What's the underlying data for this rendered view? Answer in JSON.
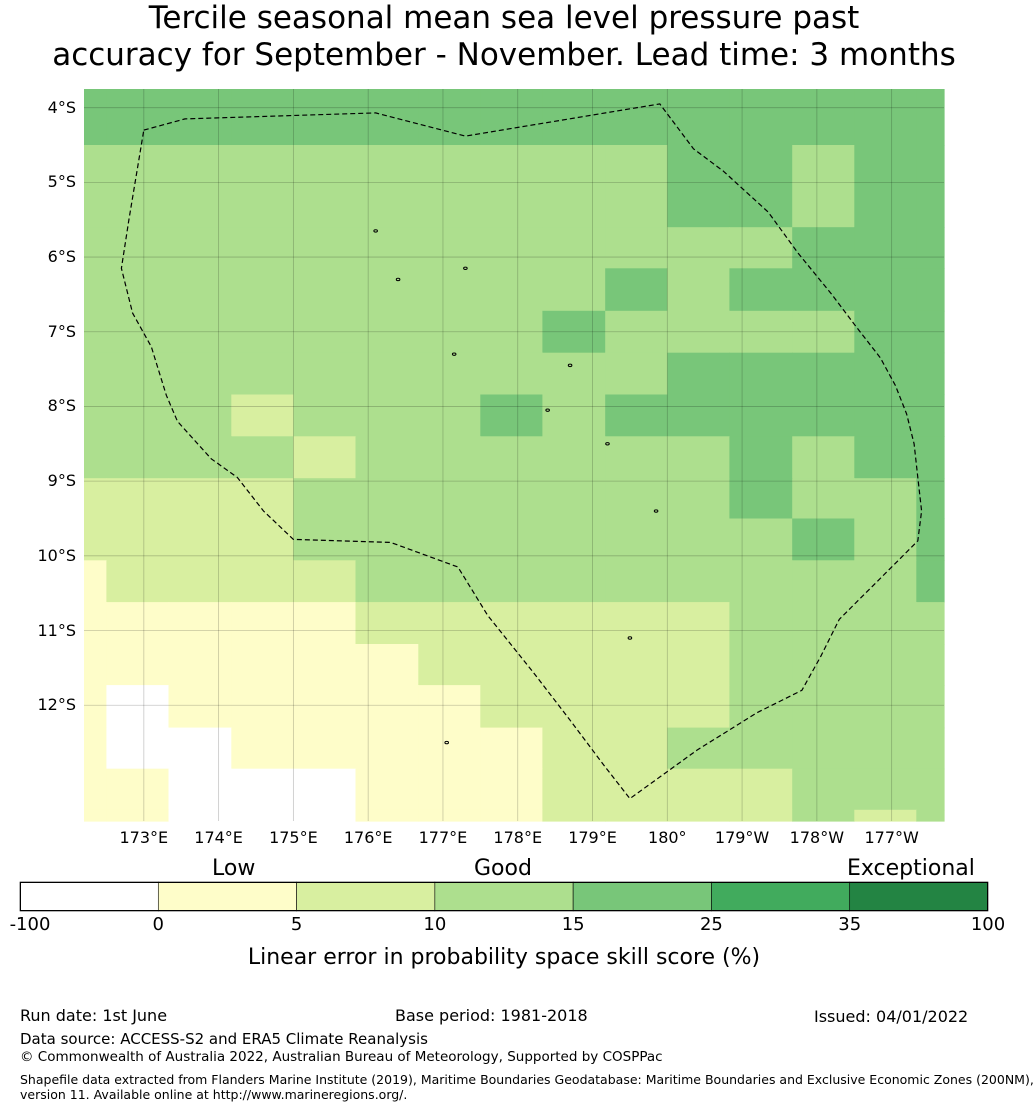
{
  "title": {
    "line1": "Tercile seasonal mean sea level pressure past",
    "line2": "accuracy for September - November. Lead time: 3 months"
  },
  "map": {
    "lat_labels": [
      "4°S",
      "5°S",
      "6°S",
      "7°S",
      "8°S",
      "9°S",
      "10°S",
      "11°S",
      "12°S"
    ],
    "lon_labels": [
      "173°E",
      "174°E",
      "175°E",
      "176°E",
      "177°E",
      "178°E",
      "179°E",
      "180°",
      "179°W",
      "178°W",
      "177°W"
    ],
    "lon_range": [
      172.2,
      183.7
    ],
    "lat_range": [
      -3.75,
      -13.55
    ],
    "grid": {
      "comment_cols": "cell columns span the longitude range left to right",
      "col_edges_lon": [
        172.2,
        172.5,
        173.33,
        174.17,
        175.0,
        175.83,
        176.67,
        177.5,
        178.33,
        179.17,
        180.0,
        180.83,
        181.67,
        182.5,
        183.33,
        183.7
      ],
      "row_edges_lat": [
        -3.75,
        -4.5,
        -5.6,
        -6.15,
        -6.72,
        -7.28,
        -7.84,
        -8.4,
        -8.96,
        -9.5,
        -10.06,
        -10.62,
        -11.18,
        -11.73,
        -12.3,
        -12.85,
        -13.4,
        -13.55
      ],
      "categories": [
        [
          4,
          4,
          4,
          4,
          4,
          4,
          4,
          4,
          4,
          4,
          4,
          4,
          4,
          4,
          4
        ],
        [
          3,
          3,
          3,
          3,
          3,
          3,
          3,
          3,
          3,
          3,
          4,
          4,
          3,
          4,
          4
        ],
        [
          3,
          3,
          3,
          3,
          3,
          3,
          3,
          3,
          3,
          3,
          3,
          3,
          4,
          4,
          4
        ],
        [
          3,
          3,
          3,
          3,
          3,
          3,
          3,
          3,
          3,
          4,
          3,
          4,
          4,
          4,
          4
        ],
        [
          3,
          3,
          3,
          3,
          3,
          3,
          3,
          3,
          4,
          3,
          3,
          3,
          3,
          4,
          4
        ],
        [
          3,
          3,
          3,
          3,
          3,
          3,
          3,
          3,
          3,
          3,
          4,
          4,
          4,
          4,
          4
        ],
        [
          3,
          3,
          3,
          2,
          3,
          3,
          3,
          4,
          3,
          4,
          4,
          4,
          4,
          4,
          4
        ],
        [
          3,
          3,
          3,
          3,
          2,
          3,
          3,
          3,
          3,
          3,
          3,
          4,
          3,
          4,
          4
        ],
        [
          2,
          2,
          2,
          2,
          3,
          3,
          3,
          3,
          3,
          3,
          3,
          4,
          3,
          3,
          4
        ],
        [
          2,
          2,
          2,
          2,
          3,
          3,
          3,
          3,
          3,
          3,
          3,
          3,
          4,
          3,
          4
        ],
        [
          1,
          2,
          2,
          2,
          2,
          3,
          3,
          3,
          3,
          3,
          3,
          3,
          3,
          3,
          4
        ],
        [
          1,
          1,
          1,
          1,
          1,
          2,
          2,
          2,
          2,
          2,
          2,
          3,
          3,
          3,
          3
        ],
        [
          1,
          1,
          1,
          1,
          1,
          1,
          2,
          2,
          2,
          2,
          2,
          3,
          3,
          3,
          3
        ],
        [
          1,
          0,
          1,
          1,
          1,
          1,
          1,
          2,
          2,
          2,
          2,
          3,
          3,
          3,
          3
        ],
        [
          1,
          0,
          0,
          1,
          1,
          1,
          1,
          1,
          2,
          2,
          3,
          3,
          3,
          3,
          3
        ],
        [
          1,
          1,
          0,
          0,
          0,
          1,
          1,
          1,
          2,
          2,
          2,
          2,
          3,
          3,
          3
        ],
        [
          1,
          1,
          0,
          0,
          0,
          1,
          1,
          1,
          2,
          2,
          2,
          2,
          3,
          2,
          3
        ]
      ]
    },
    "eez_boundary": [
      [
        173.0,
        -4.3
      ],
      [
        173.55,
        -4.15
      ],
      [
        176.1,
        -4.07
      ],
      [
        177.3,
        -4.38
      ],
      [
        179.9,
        -3.95
      ],
      [
        180.35,
        -4.55
      ],
      [
        180.75,
        -4.85
      ],
      [
        181.35,
        -5.4
      ],
      [
        181.75,
        -5.95
      ],
      [
        182.2,
        -6.5
      ],
      [
        182.5,
        -6.9
      ],
      [
        182.85,
        -7.35
      ],
      [
        183.05,
        -7.72
      ],
      [
        183.2,
        -8.1
      ],
      [
        183.3,
        -8.5
      ],
      [
        183.35,
        -8.95
      ],
      [
        183.4,
        -9.4
      ],
      [
        183.35,
        -9.8
      ],
      [
        182.8,
        -10.35
      ],
      [
        182.3,
        -10.85
      ],
      [
        182.05,
        -11.35
      ],
      [
        181.8,
        -11.8
      ],
      [
        181.2,
        -12.1
      ],
      [
        180.4,
        -12.6
      ],
      [
        179.5,
        -13.25
      ],
      [
        179.15,
        -12.8
      ],
      [
        178.7,
        -12.2
      ],
      [
        178.2,
        -11.55
      ],
      [
        177.6,
        -10.8
      ],
      [
        177.2,
        -10.15
      ],
      [
        176.3,
        -9.82
      ],
      [
        175.0,
        -9.78
      ],
      [
        174.6,
        -9.4
      ],
      [
        174.25,
        -8.95
      ],
      [
        173.9,
        -8.7
      ],
      [
        173.45,
        -8.2
      ],
      [
        173.3,
        -7.85
      ],
      [
        173.1,
        -7.2
      ],
      [
        172.85,
        -6.75
      ],
      [
        172.7,
        -6.15
      ],
      [
        172.8,
        -5.5
      ],
      [
        173.0,
        -4.3
      ]
    ],
    "islands": [
      [
        176.1,
        -5.65
      ],
      [
        176.4,
        -6.3
      ],
      [
        177.3,
        -6.15
      ],
      [
        177.15,
        -7.3
      ],
      [
        178.7,
        -7.45
      ],
      [
        178.4,
        -8.05
      ],
      [
        179.2,
        -8.5
      ],
      [
        179.85,
        -9.4
      ],
      [
        179.5,
        -11.1
      ],
      [
        177.05,
        -12.5
      ]
    ]
  },
  "colorbar": {
    "category_labels": [
      "Low",
      "Good",
      "Exceptional"
    ],
    "ticks": [
      "-100",
      "0",
      "5",
      "10",
      "15",
      "25",
      "35",
      "100"
    ],
    "colors": [
      "#ffffff",
      "#fefdc9",
      "#d8efa0",
      "#addf8e",
      "#78c679",
      "#41ab5d",
      "#238443"
    ],
    "label": "Linear error in probability space skill score (%)"
  },
  "footer": {
    "run_date": "Run date: 1st June",
    "base_period": "Base period: 1981-2018",
    "issued": "Issued: 04/01/2022",
    "data_source": "Data source: ACCESS-S2 and ERA5 Climate Reanalysis",
    "copyright": "© Commonwealth of Australia 2022, Australian Bureau of Meteorology, Supported by COSPPac",
    "shapefile_line1": "Shapefile data extracted from Flanders Marine Institute (2019), Maritime Boundaries Geodatabase: Maritime Boundaries and Exclusive Economic Zones (200NM),",
    "shapefile_line2": "version 11. Available online at http://www.marineregions.org/."
  }
}
